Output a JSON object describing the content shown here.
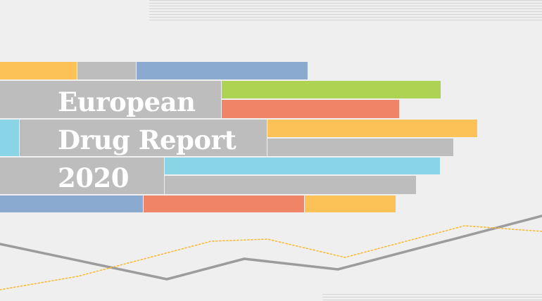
{
  "cover": {
    "title_line_1": "European",
    "title_line_2": "Drug Report",
    "title_line_3": "2020"
  },
  "colors": {
    "background": "#efefef",
    "grey": "#bdbdbe",
    "yellow": "#fdc257",
    "blue": "#8aabcf",
    "green": "#aed251",
    "orange": "#ef8466",
    "cyan": "#8ad4e8",
    "trend_grey": "#9c9c9c",
    "trend_dotted": "#fbb934"
  }
}
